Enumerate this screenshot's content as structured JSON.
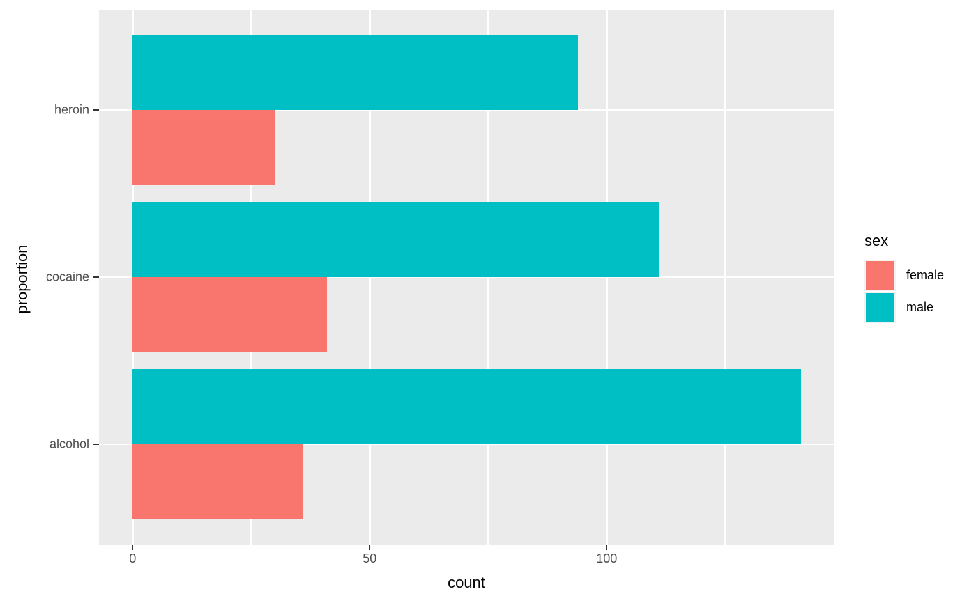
{
  "chart_data": {
    "type": "bar",
    "orientation": "horizontal",
    "title": "",
    "xlabel": "count",
    "ylabel": "proportion",
    "categories": [
      "heroin",
      "cocaine",
      "alcohol"
    ],
    "series": [
      {
        "name": "male",
        "color": "#00BFC4",
        "values": [
          94,
          111,
          141
        ]
      },
      {
        "name": "female",
        "color": "#F8766D",
        "values": [
          30,
          41,
          36
        ]
      }
    ],
    "x_ticks": [
      0,
      50,
      100
    ],
    "x_minor_ticks": [
      25,
      75,
      125
    ],
    "xlim": [
      -7.1,
      147.9
    ],
    "grid": true,
    "legend": {
      "title": "sex",
      "position": "right",
      "entries": [
        {
          "label": "female",
          "color": "#F8766D"
        },
        {
          "label": "male",
          "color": "#00BFC4"
        }
      ]
    },
    "colors": {
      "panel_background": "#EBEBEB",
      "gridline": "#FFFFFF",
      "tick_text": "#4D4D4D",
      "title_text": "#000000",
      "tick_mark": "#333333"
    }
  }
}
